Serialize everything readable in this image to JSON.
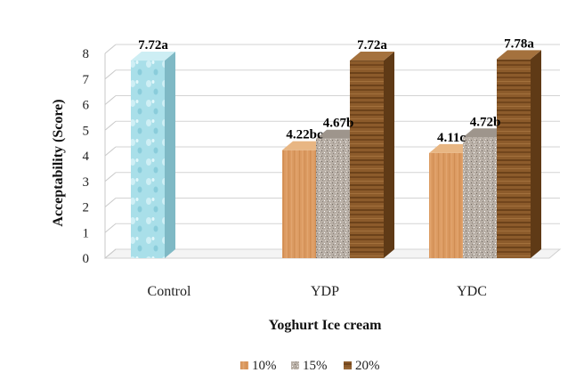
{
  "chart_data": {
    "type": "bar",
    "categories": [
      "Control",
      "YDP",
      "YDC"
    ],
    "series": [
      {
        "name": "10%",
        "values": [
          null,
          4.22,
          4.11
        ],
        "labels": [
          null,
          "4.22bc",
          "4.11c"
        ],
        "color": "#d9955a"
      },
      {
        "name": "15%",
        "values": [
          null,
          4.67,
          4.72
        ],
        "labels": [
          null,
          "4.67b",
          "4.72b"
        ],
        "color": "#b5aca3"
      },
      {
        "name": "20%",
        "values": [
          null,
          7.72,
          7.78
        ],
        "labels": [
          null,
          "7.72a",
          "7.78a"
        ],
        "color": "#8a5a2c"
      }
    ],
    "control": {
      "value": 7.72,
      "label": "7.72a",
      "color": "#a6dde8"
    },
    "xlabel": "Yoghurt Ice cream",
    "ylabel": "Acceptability (Score)",
    "ylim": [
      0,
      8
    ],
    "yticks": [
      0,
      1,
      2,
      3,
      4,
      5,
      6,
      7,
      8
    ],
    "grid": true,
    "legend": "bottom"
  }
}
